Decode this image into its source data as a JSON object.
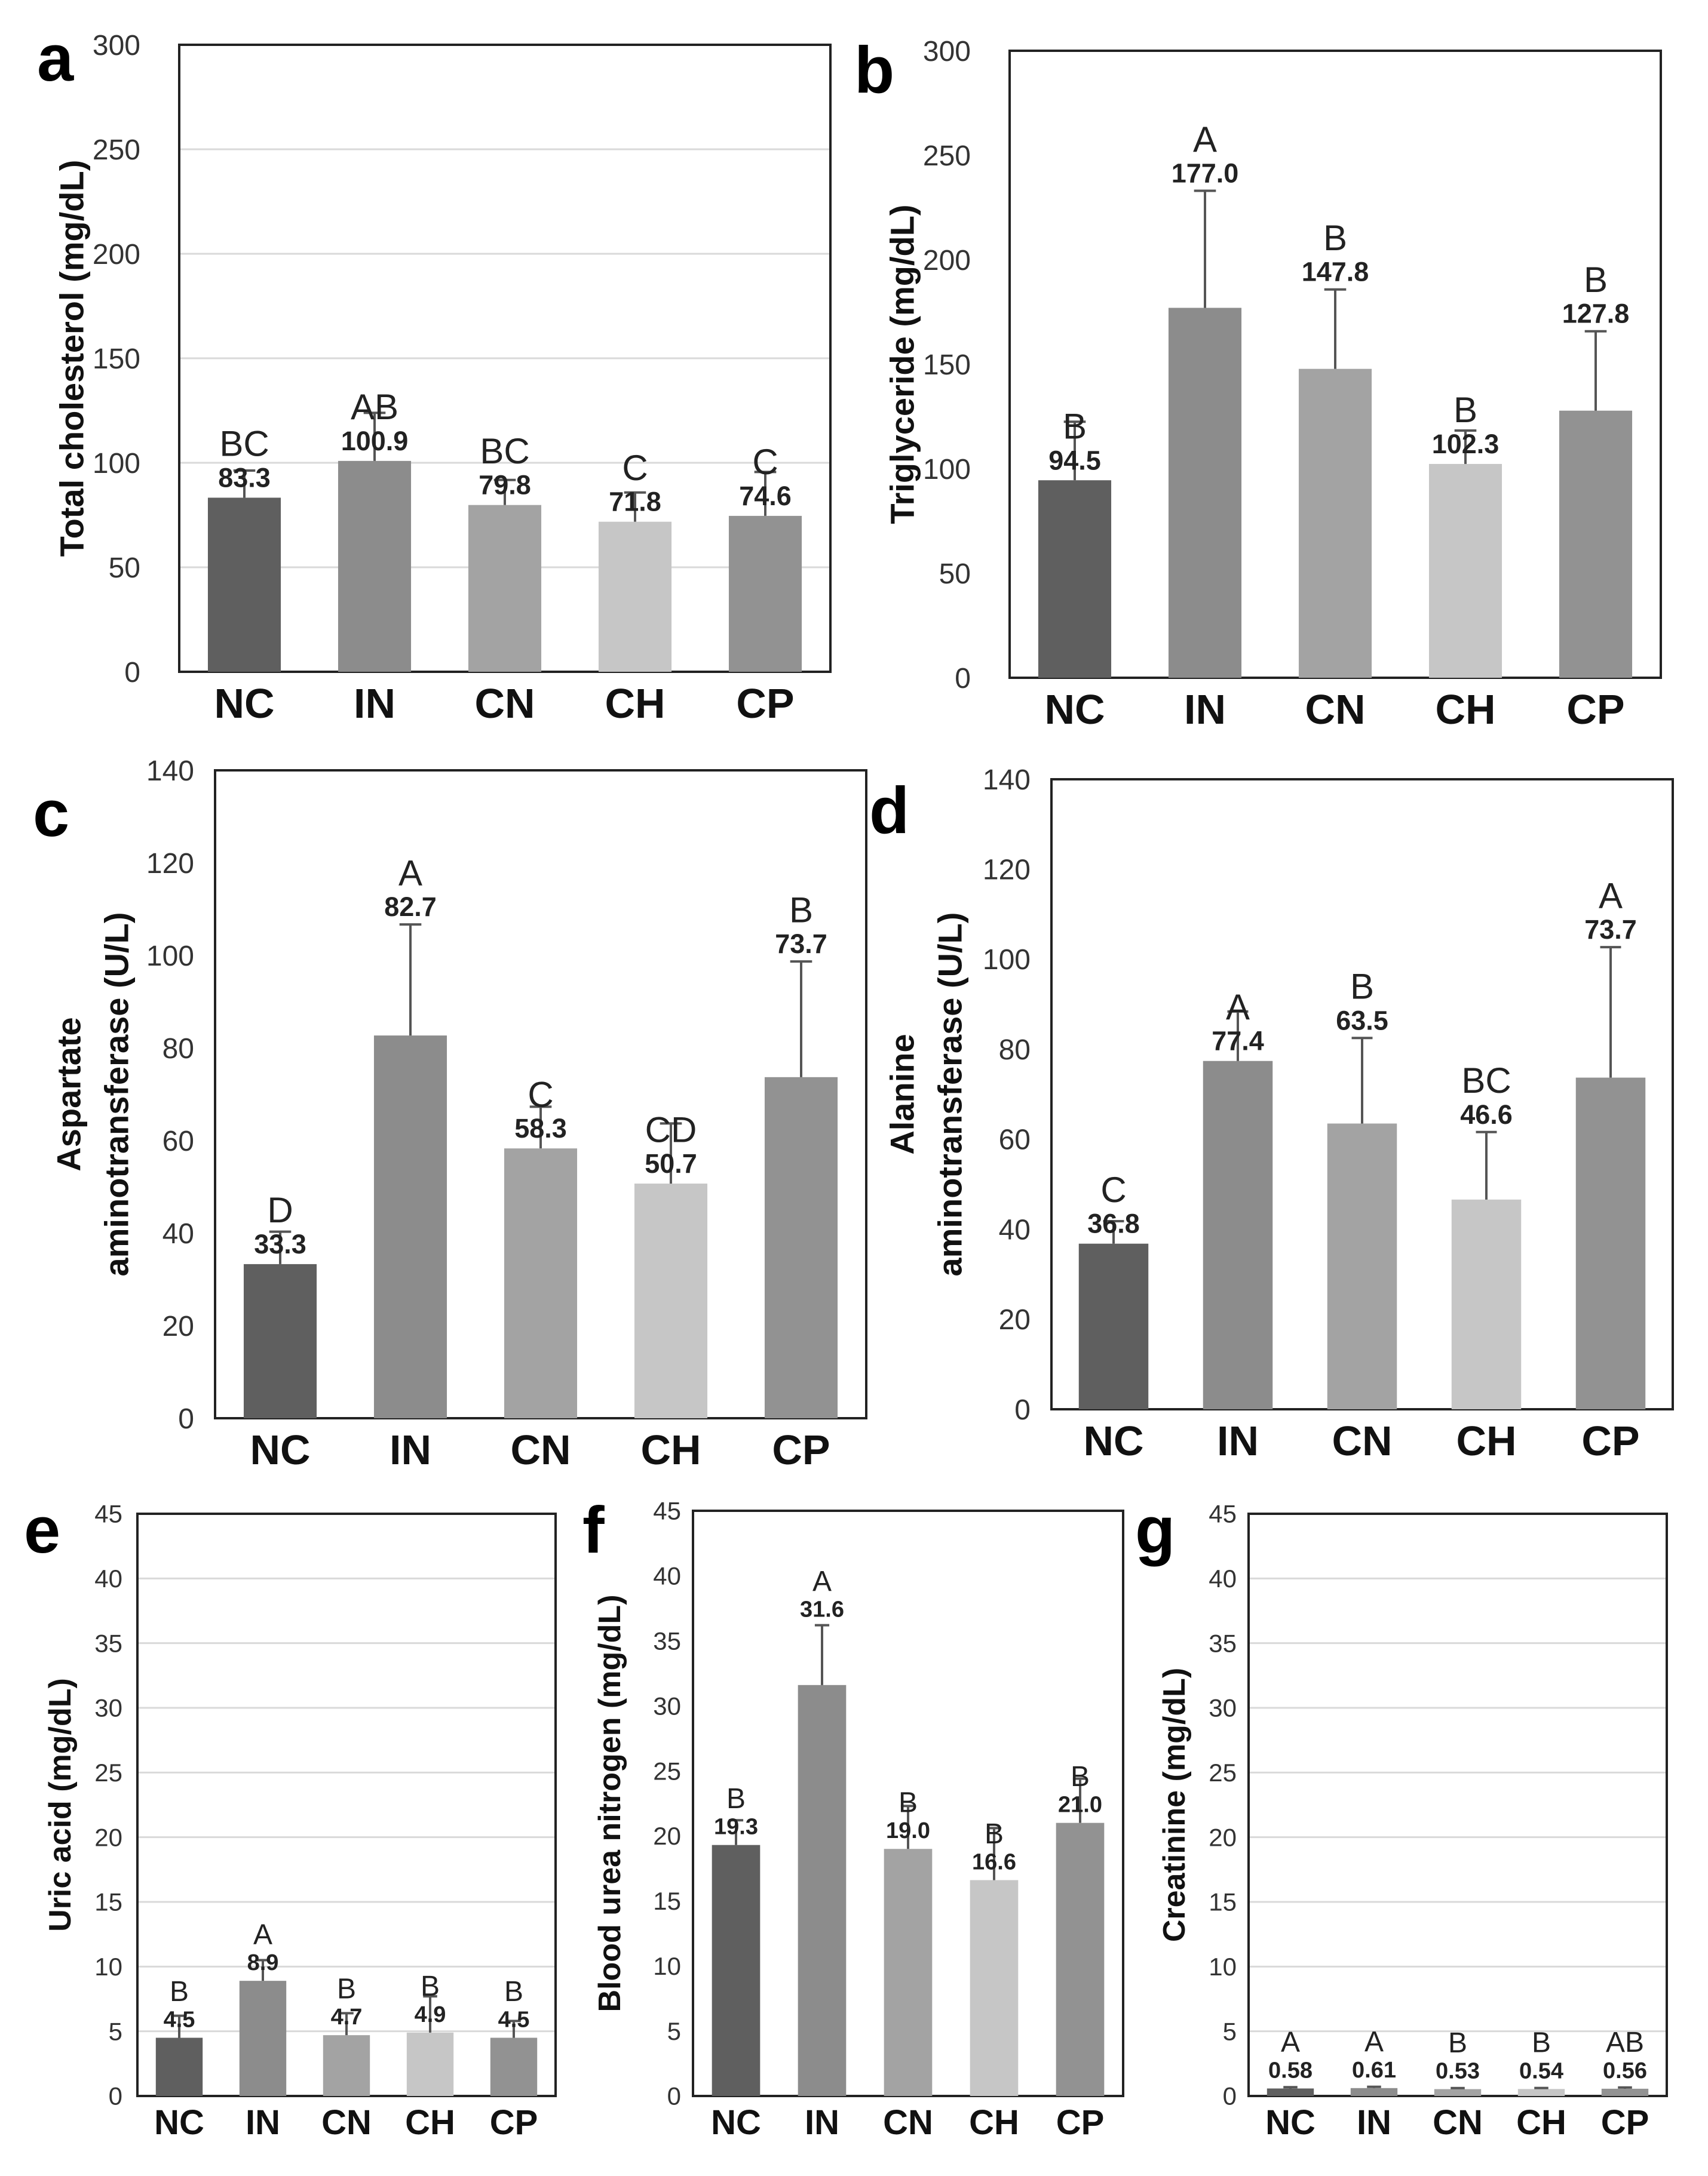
{
  "figure_name": "Serum biochemical parameters bar charts",
  "colors": {
    "NC": "#5f5f5f",
    "IN": "#8c8c8c",
    "CN": "#a3a3a3",
    "CH": "#c6c6c6",
    "CP": "#929292",
    "grid": "#d9d9d9",
    "frame": "#222222"
  },
  "chart_data": [
    {
      "panel": "a",
      "type": "bar",
      "ylabel": "Total cholesterol (mg/dL)",
      "ylabel_lines": [
        "Total cholesterol (mg/dL)"
      ],
      "categories": [
        "NC",
        "IN",
        "CN",
        "CH",
        "CP"
      ],
      "values": [
        83.3,
        100.9,
        79.8,
        71.8,
        74.6
      ],
      "errors": [
        13,
        23,
        12,
        14,
        21
      ],
      "value_labels": [
        "83.3",
        "100.9",
        "79.8",
        "71.8",
        "74.6"
      ],
      "group_letters": [
        "BC",
        "AB",
        "BC",
        "C",
        "C"
      ],
      "ylim": [
        0,
        300
      ],
      "yticks": [
        0,
        50,
        100,
        150,
        200,
        250,
        300
      ],
      "ytick_labels": [
        "0",
        "50",
        "100",
        "150",
        "200",
        "250",
        "300"
      ],
      "grid": true
    },
    {
      "panel": "b",
      "type": "bar",
      "ylabel": "Triglyceride (mg/dL)",
      "ylabel_lines": [
        "Triglyceride (mg/dL)"
      ],
      "categories": [
        "NC",
        "IN",
        "CN",
        "CH",
        "CP"
      ],
      "values": [
        94.5,
        177.0,
        147.8,
        102.3,
        127.8
      ],
      "errors": [
        28,
        56,
        38,
        16,
        38
      ],
      "value_labels": [
        "94.5",
        "177.0",
        "147.8",
        "102.3",
        "127.8"
      ],
      "group_letters": [
        "B",
        "A",
        "B",
        "B",
        "B"
      ],
      "ylim": [
        0,
        300
      ],
      "yticks": [
        0,
        50,
        100,
        150,
        200,
        250,
        300
      ],
      "ytick_labels": [
        "0",
        "50",
        "100",
        "150",
        "200",
        "250",
        "300"
      ],
      "grid": false
    },
    {
      "panel": "c",
      "type": "bar",
      "ylabel": "Aspartate aminotransferase (U/L)",
      "ylabel_lines": [
        "Aspartate",
        "aminotransferase (U/L)"
      ],
      "categories": [
        "NC",
        "IN",
        "CN",
        "CH",
        "CP"
      ],
      "values": [
        33.3,
        82.7,
        58.3,
        50.7,
        73.7
      ],
      "errors": [
        7,
        24,
        9,
        13,
        25
      ],
      "value_labels": [
        "33.3",
        "82.7",
        "58.3",
        "50.7",
        "73.7"
      ],
      "group_letters": [
        "D",
        "A",
        "C",
        "CD",
        "B"
      ],
      "ylim": [
        0,
        140
      ],
      "yticks": [
        0,
        20,
        40,
        60,
        80,
        100,
        120,
        140
      ],
      "ytick_labels": [
        "0",
        "20",
        "40",
        "60",
        "80",
        "100",
        "120",
        "140"
      ],
      "grid": false
    },
    {
      "panel": "d",
      "type": "bar",
      "ylabel": "Alanine aminotransferase (U/L)",
      "ylabel_lines": [
        "Alanine",
        "aminotransferase (U/L)"
      ],
      "categories": [
        "NC",
        "IN",
        "CN",
        "CH",
        "CP"
      ],
      "values": [
        36.8,
        77.4,
        63.5,
        46.6,
        73.7
      ],
      "errors": [
        5,
        11,
        19,
        15,
        29
      ],
      "value_labels": [
        "36.8",
        "77.4",
        "63.5",
        "46.6",
        "73.7"
      ],
      "group_letters": [
        "C",
        "A",
        "B",
        "BC",
        "A"
      ],
      "ylim": [
        0,
        140
      ],
      "yticks": [
        0,
        20,
        40,
        60,
        80,
        100,
        120,
        140
      ],
      "ytick_labels": [
        "0",
        "20",
        "40",
        "60",
        "80",
        "100",
        "120",
        "140"
      ],
      "grid": false
    },
    {
      "panel": "e",
      "type": "bar",
      "ylabel": "Uric acid (mg/dL)",
      "ylabel_lines": [
        "Uric acid (mg/dL)"
      ],
      "categories": [
        "NC",
        "IN",
        "CN",
        "CH",
        "CP"
      ],
      "values": [
        4.5,
        8.9,
        4.7,
        4.9,
        4.5
      ],
      "errors": [
        1.7,
        1.6,
        1.7,
        2.8,
        1.3
      ],
      "value_labels": [
        "4.5",
        "8.9",
        "4.7",
        "4.9",
        "4.5"
      ],
      "group_letters": [
        "B",
        "A",
        "B",
        "B",
        "B"
      ],
      "ylim": [
        0,
        45
      ],
      "yticks": [
        0,
        5,
        10,
        15,
        20,
        25,
        30,
        35,
        40,
        45
      ],
      "ytick_labels": [
        "0",
        "5",
        "10",
        "15",
        "20",
        "25",
        "30",
        "35",
        "40",
        "45"
      ],
      "grid": true
    },
    {
      "panel": "f",
      "type": "bar",
      "ylabel": "Blood urea nitrogen (mg/dL)",
      "ylabel_lines": [
        "Blood urea nitrogen (mg/dL)"
      ],
      "categories": [
        "NC",
        "IN",
        "CN",
        "CH",
        "CP"
      ],
      "values": [
        19.3,
        31.6,
        19.0,
        16.6,
        21.0
      ],
      "errors": [
        1.9,
        4.6,
        3.3,
        4.0,
        3.4
      ],
      "value_labels": [
        "19.3",
        "31.6",
        "19.0",
        "16.6",
        "21.0"
      ],
      "group_letters": [
        "B",
        "A",
        "B",
        "B",
        "B"
      ],
      "ylim": [
        0,
        45
      ],
      "yticks": [
        0,
        5,
        10,
        15,
        20,
        25,
        30,
        35,
        40,
        45
      ],
      "ytick_labels": [
        "0",
        "5",
        "10",
        "15",
        "20",
        "25",
        "30",
        "35",
        "40",
        "45"
      ],
      "grid": false
    },
    {
      "panel": "g",
      "type": "bar",
      "ylabel": "Creatinine (mg/dL)",
      "ylabel_lines": [
        "Creatinine (mg/dL)"
      ],
      "categories": [
        "NC",
        "IN",
        "CN",
        "CH",
        "CP"
      ],
      "values": [
        0.58,
        0.61,
        0.53,
        0.54,
        0.56
      ],
      "errors": [
        0.1,
        0.1,
        0.08,
        0.08,
        0.1
      ],
      "value_labels": [
        "0.58",
        "0.61",
        "0.53",
        "0.54",
        "0.56"
      ],
      "group_letters": [
        "A",
        "A",
        "B",
        "B",
        "AB"
      ],
      "ylim": [
        0,
        45
      ],
      "yticks": [
        0,
        5,
        10,
        15,
        20,
        25,
        30,
        35,
        40,
        45
      ],
      "ytick_labels": [
        "0",
        "5",
        "10",
        "15",
        "20",
        "25",
        "30",
        "35",
        "40",
        "45"
      ],
      "grid": true
    }
  ]
}
